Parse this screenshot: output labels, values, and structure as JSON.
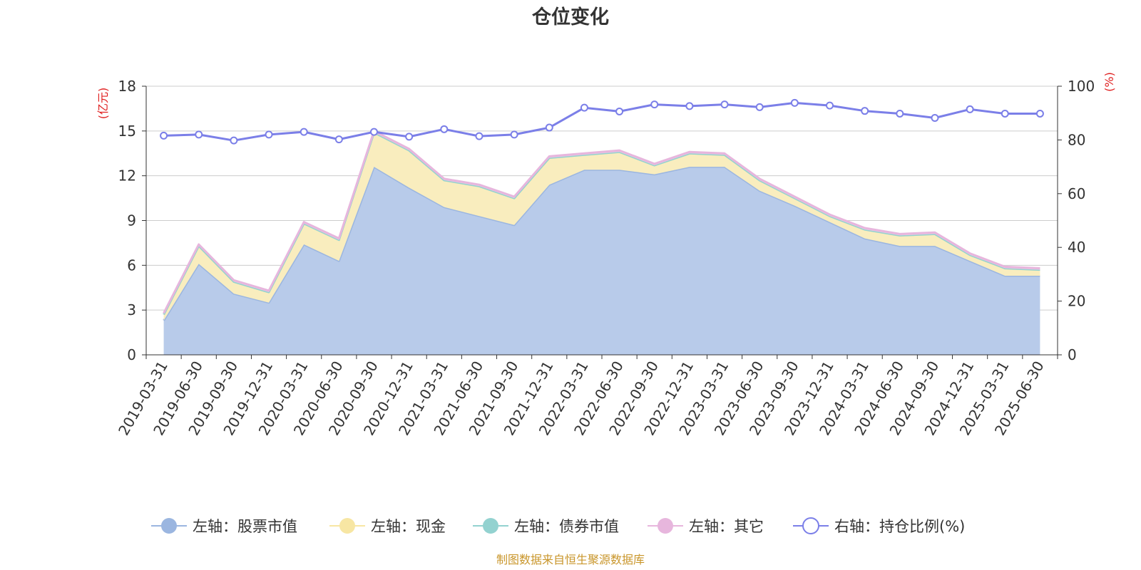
{
  "chart_data": {
    "type": "area",
    "title": "仓位变化",
    "left_axis_unit": "(亿元)",
    "right_axis_unit": "(%)",
    "categories": [
      "2019-03-31",
      "2019-06-30",
      "2019-09-30",
      "2019-12-31",
      "2020-03-31",
      "2020-06-30",
      "2020-09-30",
      "2020-12-31",
      "2021-03-31",
      "2021-06-30",
      "2021-09-30",
      "2021-12-31",
      "2022-03-31",
      "2022-06-30",
      "2022-09-30",
      "2022-12-31",
      "2023-03-31",
      "2023-06-30",
      "2023-09-30",
      "2023-12-31",
      "2024-03-31",
      "2024-06-30",
      "2024-09-30",
      "2024-12-31",
      "2025-03-31",
      "2025-06-30"
    ],
    "left_ylim": [
      0,
      18
    ],
    "left_yticks": [
      0,
      3,
      6,
      9,
      12,
      15,
      18
    ],
    "right_ylim": [
      0,
      100
    ],
    "right_yticks": [
      0,
      20,
      40,
      60,
      80,
      100
    ],
    "grid": true,
    "legend_position": "bottom",
    "series": [
      {
        "name": "左轴：股票市值",
        "axis": "left",
        "kind": "stacked-area",
        "color": "#9bb6e0",
        "fill": "#b8cbea",
        "values": [
          2.3,
          6.1,
          4.1,
          3.5,
          7.4,
          6.3,
          12.6,
          11.2,
          9.9,
          9.3,
          8.7,
          11.4,
          12.4,
          12.4,
          12.1,
          12.6,
          12.6,
          11.0,
          10.0,
          8.9,
          7.8,
          7.3,
          7.3,
          6.3,
          5.3,
          5.3
        ]
      },
      {
        "name": "左轴：现金",
        "axis": "left",
        "kind": "stacked-area",
        "color": "#f7e6a3",
        "fill": "#f9edbe",
        "values": [
          0.4,
          1.2,
          0.8,
          0.7,
          1.4,
          1.4,
          2.3,
          2.5,
          1.8,
          2.0,
          1.8,
          1.8,
          1.0,
          1.2,
          0.6,
          0.9,
          0.8,
          0.7,
          0.5,
          0.4,
          0.6,
          0.7,
          0.8,
          0.4,
          0.5,
          0.4
        ]
      },
      {
        "name": "左轴：债券市值",
        "axis": "left",
        "kind": "stacked-area",
        "color": "#93d2d0",
        "fill": "#b8e2e0",
        "values": [
          0,
          0,
          0,
          0,
          0,
          0,
          0,
          0,
          0,
          0,
          0,
          0,
          0,
          0,
          0,
          0,
          0,
          0,
          0,
          0,
          0,
          0,
          0,
          0,
          0,
          0
        ]
      },
      {
        "name": "左轴：其它",
        "axis": "left",
        "kind": "stacked-area",
        "color": "#e7b6dd",
        "fill": "#eecbe6",
        "values": [
          0.1,
          0.1,
          0.1,
          0.1,
          0.1,
          0.1,
          0.1,
          0.1,
          0.1,
          0.1,
          0.1,
          0.1,
          0.1,
          0.1,
          0.1,
          0.1,
          0.1,
          0.1,
          0.1,
          0.1,
          0.1,
          0.1,
          0.1,
          0.1,
          0.1,
          0.1
        ]
      },
      {
        "name": "右轴：持仓比例(%)",
        "axis": "right",
        "kind": "line",
        "color": "#7b7fe8",
        "values": [
          81.6,
          82.0,
          79.8,
          82.0,
          83.0,
          80.2,
          83.0,
          81.2,
          84.0,
          81.4,
          82.0,
          84.6,
          92.0,
          90.6,
          93.2,
          92.6,
          93.2,
          92.2,
          93.8,
          92.8,
          90.8,
          89.8,
          88.2,
          91.4,
          89.8,
          89.8
        ]
      }
    ],
    "source_note": "制图数据来自恒生聚源数据库"
  }
}
